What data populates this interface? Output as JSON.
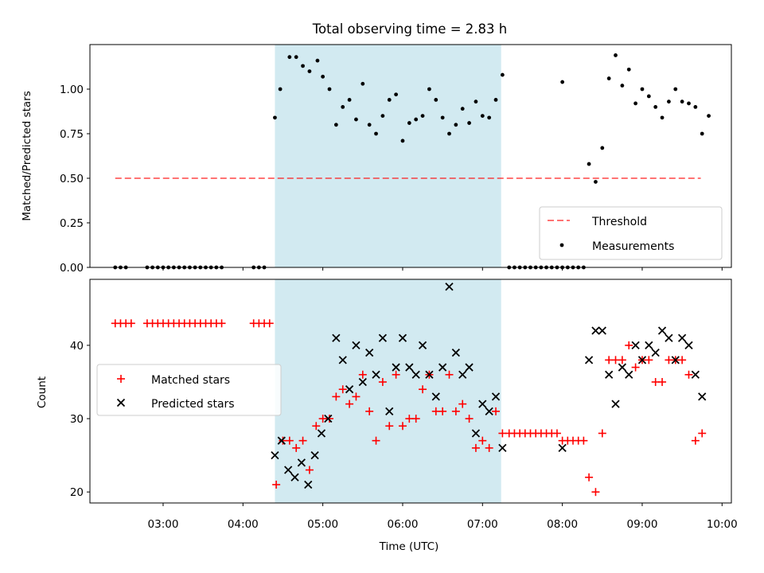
{
  "chart_data": [
    {
      "type": "scatter",
      "title": "Total observing time = 2.83 h",
      "xlabel": "",
      "ylabel": "Matched/Predicted stars",
      "xlim": [
        "02:05",
        "10:07"
      ],
      "ylim": [
        0,
        1.25
      ],
      "yticks": [
        "0.00",
        "0.25",
        "0.50",
        "0.75",
        "1.00"
      ],
      "shaded_interval": [
        "04:24",
        "07:14"
      ],
      "shade_color": "#add8e6",
      "threshold": {
        "name": "Threshold",
        "value": 0.5,
        "x_from": "02:24",
        "x_to": "09:44",
        "color": "#ff0000",
        "style": "dashed"
      },
      "legend": {
        "position": "lower-right",
        "entries": [
          "Threshold",
          "Measurements"
        ]
      },
      "series": [
        {
          "name": "Measurements",
          "color": "#000000",
          "marker": "dot",
          "points": [
            [
              "02:24",
              0
            ],
            [
              "02:28",
              0
            ],
            [
              "02:32",
              0
            ],
            [
              "02:48",
              0
            ],
            [
              "02:52",
              0
            ],
            [
              "02:56",
              0
            ],
            [
              "03:00",
              0
            ],
            [
              "03:04",
              0
            ],
            [
              "03:08",
              0
            ],
            [
              "03:12",
              0
            ],
            [
              "03:16",
              0
            ],
            [
              "03:20",
              0
            ],
            [
              "03:24",
              0
            ],
            [
              "03:28",
              0
            ],
            [
              "03:32",
              0
            ],
            [
              "03:36",
              0
            ],
            [
              "03:40",
              0
            ],
            [
              "03:44",
              0
            ],
            [
              "04:08",
              0
            ],
            [
              "04:12",
              0
            ],
            [
              "04:16",
              0
            ],
            [
              "04:24",
              0.84
            ],
            [
              "04:28",
              1.0
            ],
            [
              "04:35",
              1.18
            ],
            [
              "04:40",
              1.18
            ],
            [
              "04:45",
              1.13
            ],
            [
              "04:50",
              1.1
            ],
            [
              "04:56",
              1.16
            ],
            [
              "05:00",
              1.07
            ],
            [
              "05:05",
              1.0
            ],
            [
              "05:10",
              0.8
            ],
            [
              "05:15",
              0.9
            ],
            [
              "05:20",
              0.94
            ],
            [
              "05:25",
              0.83
            ],
            [
              "05:30",
              1.03
            ],
            [
              "05:35",
              0.8
            ],
            [
              "05:40",
              0.75
            ],
            [
              "05:45",
              0.85
            ],
            [
              "05:50",
              0.94
            ],
            [
              "05:55",
              0.97
            ],
            [
              "06:00",
              0.71
            ],
            [
              "06:05",
              0.81
            ],
            [
              "06:10",
              0.83
            ],
            [
              "06:15",
              0.85
            ],
            [
              "06:20",
              1.0
            ],
            [
              "06:25",
              0.94
            ],
            [
              "06:30",
              0.84
            ],
            [
              "06:35",
              0.75
            ],
            [
              "06:40",
              0.8
            ],
            [
              "06:45",
              0.89
            ],
            [
              "06:50",
              0.81
            ],
            [
              "06:55",
              0.93
            ],
            [
              "07:00",
              0.85
            ],
            [
              "07:05",
              0.84
            ],
            [
              "07:10",
              0.94
            ],
            [
              "07:15",
              1.08
            ],
            [
              "07:20",
              0
            ],
            [
              "07:24",
              0
            ],
            [
              "07:28",
              0
            ],
            [
              "07:32",
              0
            ],
            [
              "07:36",
              0
            ],
            [
              "07:40",
              0
            ],
            [
              "07:44",
              0
            ],
            [
              "07:48",
              0
            ],
            [
              "07:52",
              0
            ],
            [
              "07:56",
              0
            ],
            [
              "08:00",
              0
            ],
            [
              "08:04",
              0
            ],
            [
              "08:08",
              0
            ],
            [
              "08:12",
              0
            ],
            [
              "08:16",
              0
            ],
            [
              "08:00",
              1.04
            ],
            [
              "08:20",
              0.58
            ],
            [
              "08:25",
              0.48
            ],
            [
              "08:30",
              0.67
            ],
            [
              "08:35",
              1.06
            ],
            [
              "08:40",
              1.19
            ],
            [
              "08:45",
              1.02
            ],
            [
              "08:50",
              1.11
            ],
            [
              "08:55",
              0.92
            ],
            [
              "09:00",
              1.0
            ],
            [
              "09:05",
              0.96
            ],
            [
              "09:10",
              0.9
            ],
            [
              "09:15",
              0.84
            ],
            [
              "09:20",
              0.93
            ],
            [
              "09:25",
              1.0
            ],
            [
              "09:30",
              0.93
            ],
            [
              "09:35",
              0.92
            ],
            [
              "09:40",
              0.9
            ],
            [
              "09:45",
              0.75
            ],
            [
              "09:50",
              0.85
            ]
          ]
        }
      ]
    },
    {
      "type": "scatter",
      "title": "",
      "xlabel": "Time (UTC)",
      "ylabel": "Count",
      "xlim": [
        "02:05",
        "10:07"
      ],
      "ylim": [
        18.5,
        49
      ],
      "xticks": [
        "03:00",
        "04:00",
        "05:00",
        "06:00",
        "07:00",
        "08:00",
        "09:00",
        "10:00"
      ],
      "yticks": [
        "20",
        "30",
        "40"
      ],
      "shaded_interval": [
        "04:24",
        "07:14"
      ],
      "shade_color": "#add8e6",
      "legend": {
        "position": "center-left",
        "entries": [
          "Matched stars",
          "Predicted stars"
        ]
      },
      "series": [
        {
          "name": "Matched stars",
          "color": "#ff0000",
          "marker": "plus",
          "points": [
            [
              "02:24",
              43
            ],
            [
              "02:28",
              43
            ],
            [
              "02:32",
              43
            ],
            [
              "02:36",
              43
            ],
            [
              "02:48",
              43
            ],
            [
              "02:52",
              43
            ],
            [
              "02:56",
              43
            ],
            [
              "03:00",
              43
            ],
            [
              "03:04",
              43
            ],
            [
              "03:08",
              43
            ],
            [
              "03:12",
              43
            ],
            [
              "03:16",
              43
            ],
            [
              "03:20",
              43
            ],
            [
              "03:24",
              43
            ],
            [
              "03:28",
              43
            ],
            [
              "03:32",
              43
            ],
            [
              "03:36",
              43
            ],
            [
              "03:40",
              43
            ],
            [
              "03:44",
              43
            ],
            [
              "04:08",
              43
            ],
            [
              "04:12",
              43
            ],
            [
              "04:16",
              43
            ],
            [
              "04:20",
              43
            ],
            [
              "04:25",
              21
            ],
            [
              "04:30",
              27
            ],
            [
              "04:35",
              27
            ],
            [
              "04:40",
              26
            ],
            [
              "04:45",
              27
            ],
            [
              "04:50",
              23
            ],
            [
              "04:55",
              29
            ],
            [
              "05:00",
              30
            ],
            [
              "05:05",
              30
            ],
            [
              "05:10",
              33
            ],
            [
              "05:15",
              34
            ],
            [
              "05:20",
              32
            ],
            [
              "05:25",
              33
            ],
            [
              "05:30",
              36
            ],
            [
              "05:35",
              31
            ],
            [
              "05:40",
              27
            ],
            [
              "05:45",
              35
            ],
            [
              "05:50",
              29
            ],
            [
              "05:55",
              36
            ],
            [
              "06:00",
              29
            ],
            [
              "06:05",
              30
            ],
            [
              "06:10",
              30
            ],
            [
              "06:15",
              34
            ],
            [
              "06:20",
              36
            ],
            [
              "06:25",
              31
            ],
            [
              "06:30",
              31
            ],
            [
              "06:35",
              36
            ],
            [
              "06:40",
              31
            ],
            [
              "06:45",
              32
            ],
            [
              "06:50",
              30
            ],
            [
              "06:55",
              26
            ],
            [
              "07:00",
              27
            ],
            [
              "07:05",
              26
            ],
            [
              "07:10",
              31
            ],
            [
              "07:15",
              28
            ],
            [
              "07:20",
              28
            ],
            [
              "07:24",
              28
            ],
            [
              "07:28",
              28
            ],
            [
              "07:32",
              28
            ],
            [
              "07:36",
              28
            ],
            [
              "07:40",
              28
            ],
            [
              "07:44",
              28
            ],
            [
              "07:48",
              28
            ],
            [
              "07:52",
              28
            ],
            [
              "07:56",
              28
            ],
            [
              "08:00",
              27
            ],
            [
              "08:04",
              27
            ],
            [
              "08:08",
              27
            ],
            [
              "08:12",
              27
            ],
            [
              "08:16",
              27
            ],
            [
              "08:20",
              22
            ],
            [
              "08:25",
              20
            ],
            [
              "08:30",
              28
            ],
            [
              "08:35",
              38
            ],
            [
              "08:40",
              38
            ],
            [
              "08:45",
              38
            ],
            [
              "08:50",
              40
            ],
            [
              "08:55",
              37
            ],
            [
              "09:00",
              38
            ],
            [
              "09:05",
              38
            ],
            [
              "09:10",
              35
            ],
            [
              "09:15",
              35
            ],
            [
              "09:20",
              38
            ],
            [
              "09:25",
              38
            ],
            [
              "09:30",
              38
            ],
            [
              "09:35",
              36
            ],
            [
              "09:40",
              27
            ],
            [
              "09:45",
              28
            ]
          ]
        },
        {
          "name": "Predicted stars",
          "color": "#000000",
          "marker": "x",
          "points": [
            [
              "04:24",
              25
            ],
            [
              "04:29",
              27
            ],
            [
              "04:34",
              23
            ],
            [
              "04:39",
              22
            ],
            [
              "04:44",
              24
            ],
            [
              "04:49",
              21
            ],
            [
              "04:54",
              25
            ],
            [
              "04:59",
              28
            ],
            [
              "05:04",
              30
            ],
            [
              "05:10",
              41
            ],
            [
              "05:15",
              38
            ],
            [
              "05:20",
              34
            ],
            [
              "05:25",
              40
            ],
            [
              "05:30",
              35
            ],
            [
              "05:35",
              39
            ],
            [
              "05:40",
              36
            ],
            [
              "05:45",
              41
            ],
            [
              "05:50",
              31
            ],
            [
              "05:55",
              37
            ],
            [
              "06:00",
              41
            ],
            [
              "06:05",
              37
            ],
            [
              "06:10",
              36
            ],
            [
              "06:15",
              40
            ],
            [
              "06:20",
              36
            ],
            [
              "06:25",
              33
            ],
            [
              "06:30",
              37
            ],
            [
              "06:35",
              48
            ],
            [
              "06:40",
              39
            ],
            [
              "06:45",
              36
            ],
            [
              "06:50",
              37
            ],
            [
              "06:55",
              28
            ],
            [
              "07:00",
              32
            ],
            [
              "07:05",
              31
            ],
            [
              "07:10",
              33
            ],
            [
              "07:15",
              26
            ],
            [
              "08:00",
              26
            ],
            [
              "08:20",
              38
            ],
            [
              "08:25",
              42
            ],
            [
              "08:30",
              42
            ],
            [
              "08:35",
              36
            ],
            [
              "08:40",
              32
            ],
            [
              "08:45",
              37
            ],
            [
              "08:50",
              36
            ],
            [
              "08:55",
              40
            ],
            [
              "09:00",
              38
            ],
            [
              "09:05",
              40
            ],
            [
              "09:10",
              39
            ],
            [
              "09:15",
              42
            ],
            [
              "09:20",
              41
            ],
            [
              "09:25",
              38
            ],
            [
              "09:30",
              41
            ],
            [
              "09:35",
              40
            ],
            [
              "09:40",
              36
            ],
            [
              "09:45",
              33
            ]
          ]
        }
      ]
    }
  ]
}
